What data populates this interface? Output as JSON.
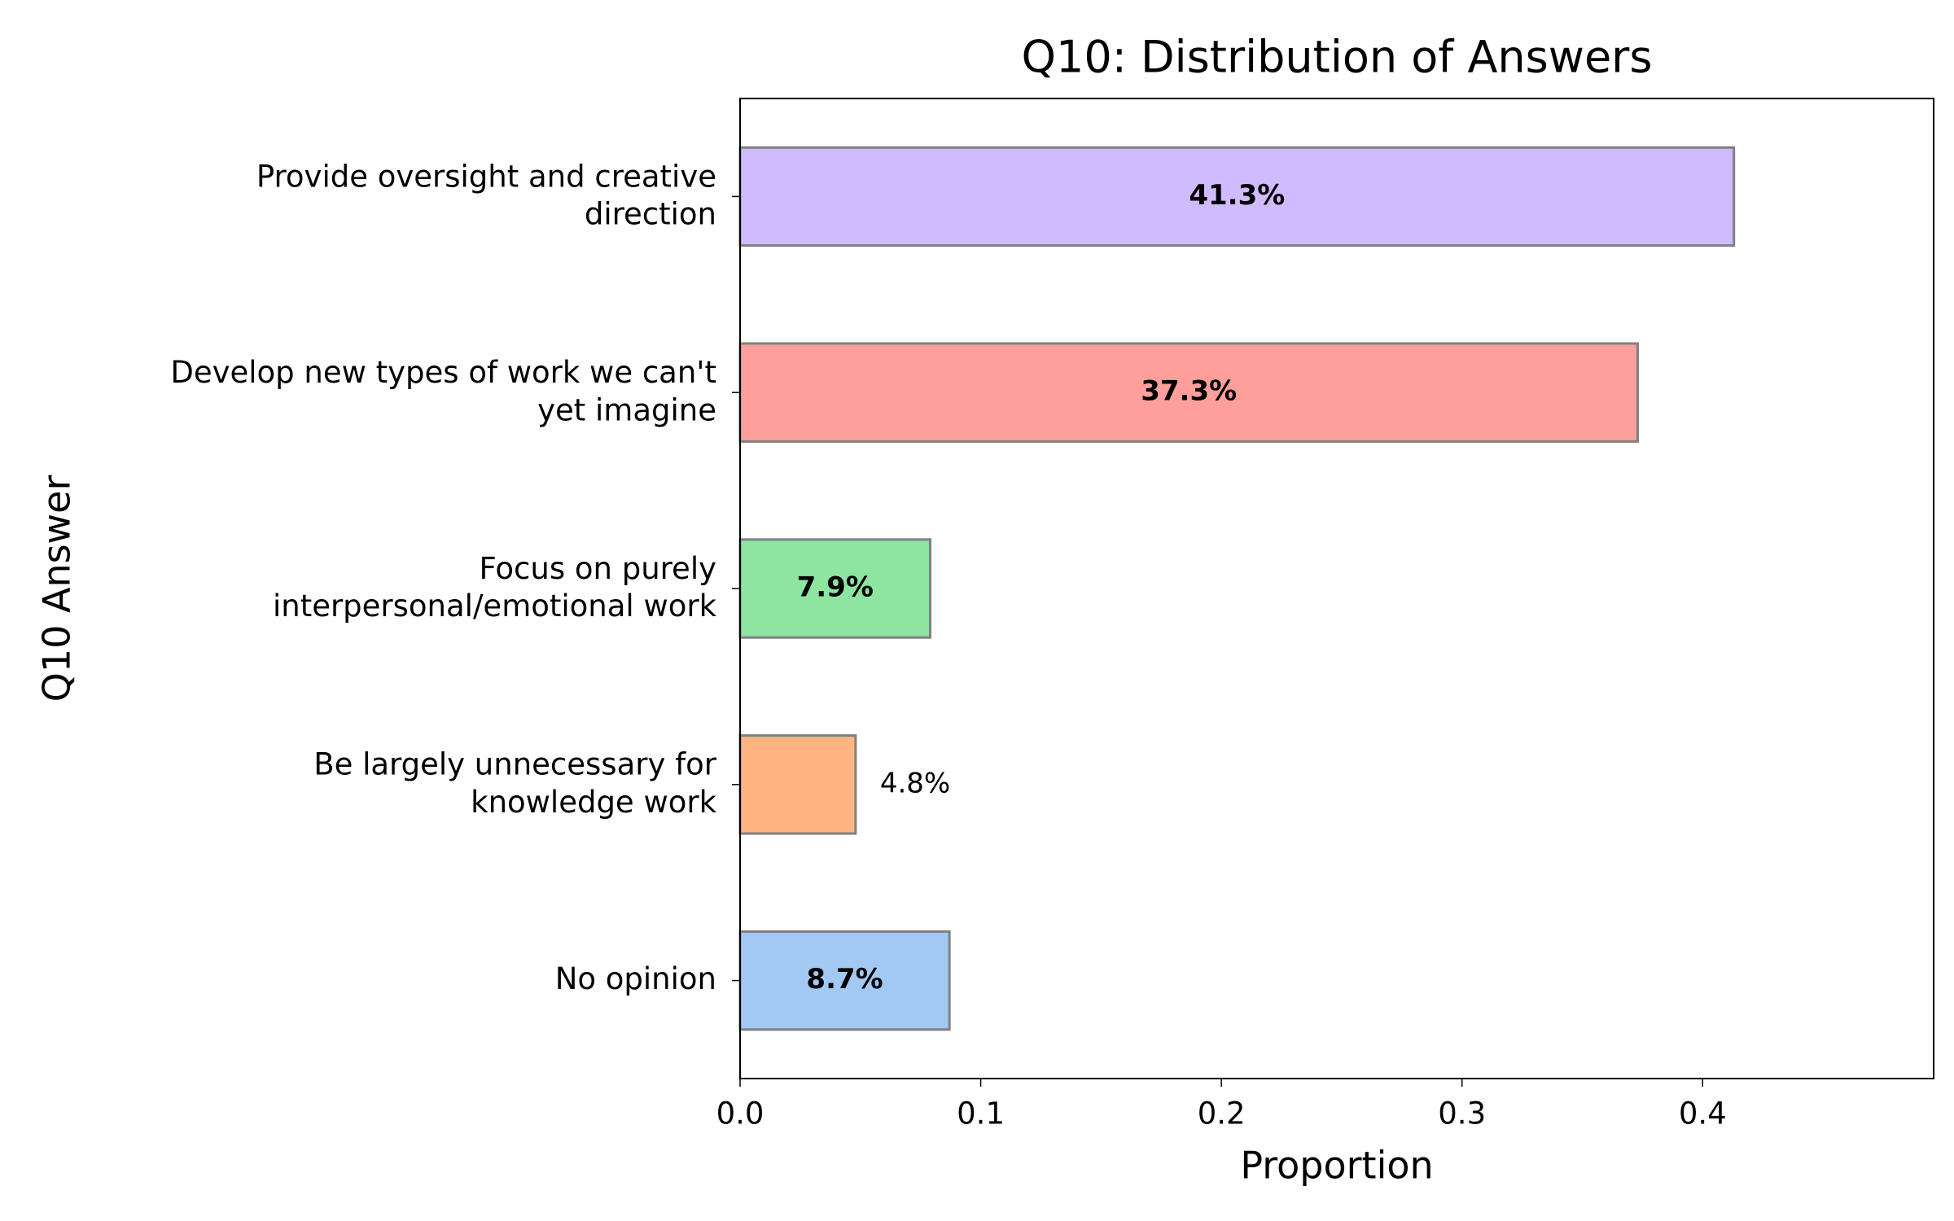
{
  "chart_data": {
    "type": "barh",
    "title": "Q10: Distribution of Answers",
    "xlabel": "Proportion",
    "ylabel": "Q10 Answer",
    "categories": [
      "Provide oversight and creative\ndirection",
      "Develop new types of work we can't\nyet imagine",
      "Focus on purely\ninterpersonal/emotional work",
      "Be largely unnecessary for\nknowledge work",
      "No opinion"
    ],
    "values": [
      0.413,
      0.373,
      0.079,
      0.048,
      0.087
    ],
    "value_labels": [
      "41.3%",
      "37.3%",
      "7.9%",
      "4.8%",
      "8.7%"
    ],
    "colors": [
      "#d0bbff",
      "#ff9f9b",
      "#8de5a1",
      "#ffb482",
      "#a1c9f4"
    ],
    "edgecolor": "#808080",
    "xlim": [
      0,
      0.496
    ],
    "xticks": [
      {
        "value": 0,
        "label": "0.0"
      },
      0.1,
      0.2,
      0.3,
      0.4
    ],
    "grid": false
  }
}
